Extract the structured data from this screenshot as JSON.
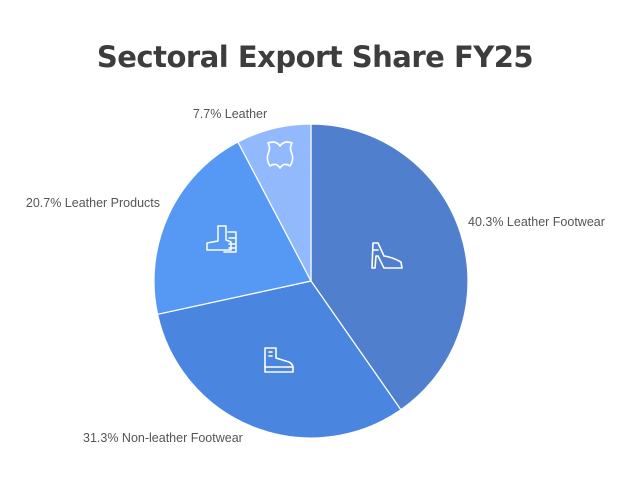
{
  "chart_data": {
    "type": "pie",
    "title": "Sectoral Export Share FY25",
    "slices": [
      {
        "name": "Leather Footwear",
        "value": 40.3,
        "label": "40.3% Leather Footwear",
        "color": "#4f7fcd",
        "icon": "high-heel-icon"
      },
      {
        "name": "Non-leather Footwear",
        "value": 31.3,
        "label": "31.3% Non-leather Footwear",
        "color": "#4a86e0",
        "icon": "boot-icon"
      },
      {
        "name": "Leather Products",
        "value": 20.7,
        "label": "20.7% Leather Products",
        "color": "#5599f4",
        "icon": "boots-icon"
      },
      {
        "name": "Leather",
        "value": 7.7,
        "label": "7.7% Leather",
        "color": "#92b9fb",
        "icon": "leather-hide-icon"
      }
    ],
    "start_angle": "12 o'clock",
    "direction": "clockwise",
    "legend": "none"
  }
}
